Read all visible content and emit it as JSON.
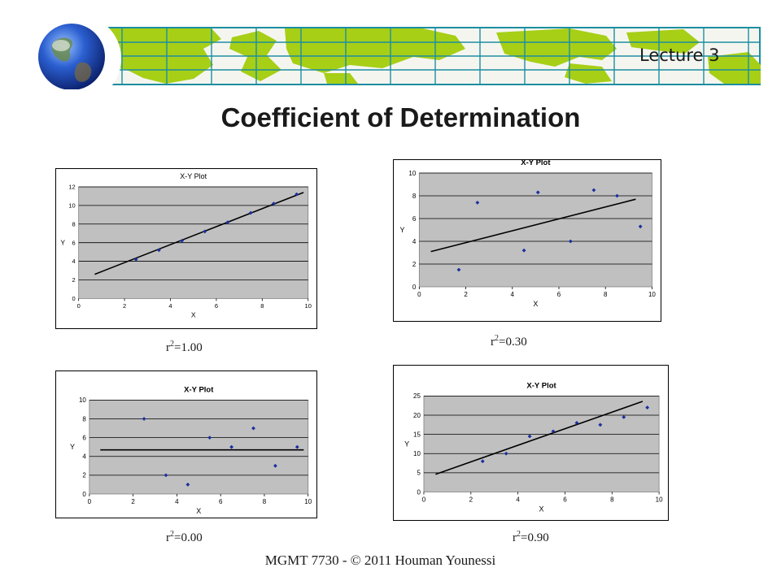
{
  "header": {
    "lecture": "Lecture 3"
  },
  "slide": {
    "title": "Coefficient of Determination",
    "footer": "MGMT 7730 - © 2011 Houman Younessi"
  },
  "colors": {
    "banner_green": "#a6cf16",
    "banner_grid": "#1d8ea0",
    "plot_area": "#c0c0c0",
    "points": "#1a2f9e",
    "trendline": "#000000",
    "caption_text": "#1a1a1a"
  },
  "icons": [
    "globe-icon"
  ],
  "chart_data": [
    {
      "type": "scatter",
      "title": "X-Y Plot",
      "xlabel": "X",
      "ylabel": "Y",
      "xlim": [
        0,
        10
      ],
      "ylim": [
        0,
        12
      ],
      "xticks": [
        "0",
        "2",
        "4",
        "6",
        "8",
        "10"
      ],
      "yticks": [
        "0",
        "2",
        "4",
        "6",
        "8",
        "10",
        "12"
      ],
      "grid": true,
      "points": [
        [
          2.5,
          4.2
        ],
        [
          3.5,
          5.2
        ],
        [
          4.5,
          6.2
        ],
        [
          5.5,
          7.2
        ],
        [
          6.5,
          8.2
        ],
        [
          7.5,
          9.2
        ],
        [
          8.5,
          10.2
        ],
        [
          9.5,
          11.2
        ]
      ],
      "trendline": [
        [
          0.7,
          2.6
        ],
        [
          9.8,
          11.4
        ]
      ],
      "caption": {
        "base": "r",
        "sup": "2",
        "rest": "=1.00"
      }
    },
    {
      "type": "scatter",
      "title": "X-Y Plot",
      "xlabel": "X",
      "ylabel": "Y",
      "xlim": [
        0,
        10
      ],
      "ylim": [
        0,
        10
      ],
      "xticks": [
        "0",
        "2",
        "4",
        "6",
        "8",
        "10"
      ],
      "yticks": [
        "0",
        "2",
        "4",
        "6",
        "8",
        "10"
      ],
      "grid": true,
      "points": [
        [
          1.7,
          1.5
        ],
        [
          2.5,
          7.4
        ],
        [
          4.5,
          3.2
        ],
        [
          5.1,
          8.3
        ],
        [
          6.5,
          4.0
        ],
        [
          7.5,
          8.5
        ],
        [
          8.5,
          8.0
        ],
        [
          9.5,
          5.3
        ]
      ],
      "trendline": [
        [
          0.5,
          3.1
        ],
        [
          9.3,
          7.7
        ]
      ],
      "caption": {
        "base": "r",
        "sup": "2",
        "rest": "=0.30"
      }
    },
    {
      "type": "scatter",
      "title": "X-Y Plot",
      "xlabel": "X",
      "ylabel": "Y",
      "xlim": [
        0,
        10
      ],
      "ylim": [
        0,
        10
      ],
      "xticks": [
        "0",
        "2",
        "4",
        "6",
        "8",
        "10"
      ],
      "yticks": [
        "0",
        "2",
        "4",
        "6",
        "8",
        "10"
      ],
      "grid": true,
      "points": [
        [
          2.5,
          8.0
        ],
        [
          3.5,
          2.0
        ],
        [
          4.5,
          1.0
        ],
        [
          5.5,
          6.0
        ],
        [
          6.5,
          5.0
        ],
        [
          7.5,
          7.0
        ],
        [
          8.5,
          3.0
        ],
        [
          9.5,
          5.0
        ]
      ],
      "trendline": [
        [
          0.5,
          4.7
        ],
        [
          9.8,
          4.7
        ]
      ],
      "caption": {
        "base": "r",
        "sup": "2",
        "rest": "=0.00"
      }
    },
    {
      "type": "scatter",
      "title": "X-Y Plot",
      "xlabel": "X",
      "ylabel": "Y",
      "xlim": [
        0,
        10
      ],
      "ylim": [
        0,
        25
      ],
      "xticks": [
        "0",
        "2",
        "4",
        "6",
        "8",
        "10"
      ],
      "yticks": [
        "0",
        "5",
        "10",
        "15",
        "20",
        "25"
      ],
      "grid": true,
      "points": [
        [
          2.5,
          8.0
        ],
        [
          3.5,
          10.0
        ],
        [
          4.5,
          14.5
        ],
        [
          5.5,
          15.8
        ],
        [
          6.5,
          18.0
        ],
        [
          7.5,
          17.5
        ],
        [
          8.5,
          19.5
        ],
        [
          9.5,
          22.0
        ]
      ],
      "trendline": [
        [
          0.5,
          4.6
        ],
        [
          9.3,
          23.6
        ]
      ],
      "caption": {
        "base": "r",
        "sup": "2",
        "rest": "=0.90"
      }
    }
  ]
}
